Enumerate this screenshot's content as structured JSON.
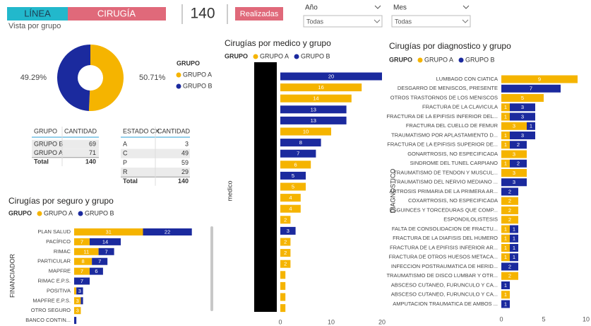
{
  "header": {
    "buttons": [
      "LÍNEA",
      "CIRUGÍA"
    ],
    "card": "140",
    "filter_button": "Realizadas",
    "slicers": [
      {
        "label": "Año",
        "value": "Todas"
      },
      {
        "label": "Mes",
        "value": "Todas"
      }
    ],
    "subtitle": "Vista por grupo"
  },
  "tables": [
    {
      "columns": [
        "GRUPO",
        "CANTIDAD"
      ],
      "rows": [
        [
          "GRUPO B",
          "69"
        ],
        [
          "GRUPO A",
          "71"
        ]
      ],
      "total": [
        "Total",
        "140"
      ]
    },
    {
      "columns": [
        "ESTADO CX",
        "CANTIDAD"
      ],
      "rows": [
        [
          "A",
          "3"
        ],
        [
          "C",
          "49"
        ],
        [
          "P",
          "59"
        ],
        [
          "R",
          "29"
        ]
      ],
      "total": [
        "Total",
        "140"
      ]
    }
  ],
  "chart_data": [
    {
      "type": "pie",
      "donut": true,
      "legend_title": "GRUPO",
      "categories": [
        "GRUPO A",
        "GRUPO B"
      ],
      "values": [
        50.71,
        49.29
      ],
      "value_labels": [
        "50.71%",
        "49.29%"
      ],
      "colors": [
        "#f5b400",
        "#1b2a9e"
      ]
    },
    {
      "type": "bar",
      "orientation": "horizontal",
      "stacked": true,
      "title": "Cirugías por seguro y grupo",
      "legend_title": "GRUPO",
      "ylabel": "FINANCIADOR",
      "categories": [
        "PLAN SALUD",
        "PACÍFICO",
        "RIMAC",
        "PARTICULAR",
        "MAPFRE",
        "RIMAC E.P.S.",
        "POSITIVA",
        "MAPFRE E.P.S.",
        "OTRO SEGURO",
        "BANCO CONTIN..."
      ],
      "series": [
        {
          "name": "GRUPO A",
          "color": "#f5b400",
          "values": [
            31,
            7,
            11,
            8,
            7,
            null,
            1,
            3,
            3,
            null
          ]
        },
        {
          "name": "GRUPO B",
          "color": "#1b2a9e",
          "values": [
            22,
            14,
            7,
            7,
            6,
            7,
            3,
            1,
            null,
            1
          ]
        }
      ],
      "xlim": [
        0,
        55
      ],
      "grid": false
    },
    {
      "type": "bar",
      "orientation": "horizontal",
      "stacked": true,
      "title": "Cirugías por medico y grupo",
      "legend_title": "GRUPO",
      "ylabel": "medico",
      "categories": [
        null,
        null,
        null,
        null,
        null,
        null,
        null,
        null,
        null,
        null,
        null,
        null,
        null,
        null,
        null,
        null,
        null,
        null,
        null,
        null,
        null,
        null
      ],
      "series": [
        {
          "name": "GRUPO A",
          "color": "#f5b400",
          "values": [
            null,
            16,
            14,
            null,
            null,
            10,
            null,
            null,
            6,
            null,
            5,
            4,
            4,
            2,
            null,
            2,
            2,
            2,
            1,
            1,
            1,
            1
          ]
        },
        {
          "name": "GRUPO B",
          "color": "#1b2a9e",
          "values": [
            20,
            null,
            null,
            13,
            13,
            null,
            8,
            7,
            null,
            5,
            null,
            null,
            null,
            null,
            3,
            null,
            null,
            null,
            null,
            null,
            null,
            null
          ]
        }
      ],
      "xlim": [
        0,
        20
      ],
      "xticks": [
        0,
        10,
        20
      ],
      "grid": false
    },
    {
      "type": "bar",
      "orientation": "horizontal",
      "stacked": true,
      "title": "Cirugías por diagnostico y grupo",
      "legend_title": "GRUPO",
      "ylabel": "DIAGNOSTICO",
      "categories": [
        "LUMBAGO CON CIATICA",
        "DESGARRO DE MENISCOS, PRESENTE",
        "OTROS TRASTORNOS DE LOS MENISCOS",
        "FRACTURA DE LA CLAVICULA",
        "FRACTURA DE LA EPIFISIS INFERIOR DEL...",
        "FRACTURA DEL CUELLO DE FEMUR",
        "TRAUMATISMO POR APLASTAMIENTO D...",
        "FRACTURA DE LA EPIFISIS SUPERIOR DE...",
        "GONARTROSIS, NO ESPECIFICADA",
        "SINDROME DEL TUNEL CARPIANO",
        "TRAUMATISMO DE TENDON Y MUSCUL...",
        "TRAUMATISMO DEL NERVIO MEDIANO ...",
        "ARTROSIS PRIMARIA DE LA PRIMERA AR...",
        "COXARTROSIS, NO ESPECIFICADA",
        "ESGUINCES Y TORCEDURAS QUE COMP...",
        "ESPONDILOLISTESIS",
        "FALTA DE CONSOLIDACION DE FRACTU...",
        "FRACTURA DE LA DIAFISIS DEL HUMERO",
        "FRACTURA DE LA EPIFISIS INFERIOR AR...",
        "FRACTURA DE OTROS HUESOS METACA...",
        "INFECCION POSTRAUMATICA DE HERID...",
        "TRAUMATISMO DE DISCO LUMBAR Y OTR...",
        "ABSCESO CUTANEO, FURUNCULO Y CA...",
        "ABSCESO CUTANEO, FURUNCULO Y CA...",
        "AMPUTACION TRAUMATICA DE AMBOS ..."
      ],
      "series": [
        {
          "name": "GRUPO A",
          "color": "#f5b400",
          "values": [
            9,
            null,
            5,
            1,
            1,
            3,
            1,
            1,
            3,
            1,
            3,
            null,
            null,
            2,
            2,
            2,
            1,
            1,
            1,
            1,
            null,
            2,
            null,
            1,
            null
          ]
        },
        {
          "name": "GRUPO B",
          "color": "#1b2a9e",
          "values": [
            null,
            7,
            null,
            3,
            3,
            1,
            3,
            2,
            null,
            2,
            null,
            3,
            2,
            null,
            null,
            null,
            1,
            1,
            1,
            1,
            2,
            null,
            1,
            null,
            1
          ]
        }
      ],
      "xlim": [
        0,
        10
      ],
      "xticks": [
        0,
        5,
        10
      ],
      "grid": false
    }
  ]
}
